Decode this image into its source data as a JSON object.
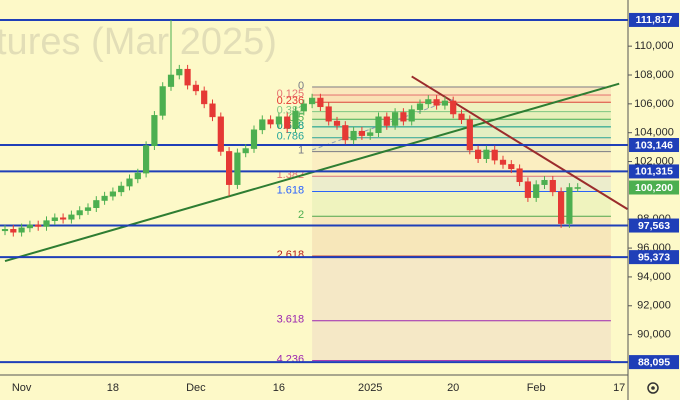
{
  "chart_data": {
    "type": "candlestick",
    "watermark": "tures (Mar 2025)",
    "categories": [
      null,
      null,
      "Nov",
      null,
      null,
      null,
      null,
      null,
      null,
      null,
      null,
      null,
      null,
      "18",
      null,
      null,
      null,
      null,
      null,
      null,
      null,
      null,
      null,
      "Dec",
      null,
      null,
      null,
      null,
      null,
      null,
      null,
      null,
      null,
      "16",
      null,
      null,
      null,
      null,
      null,
      null,
      null,
      null,
      null,
      null,
      "2025",
      null,
      null,
      null,
      null,
      null,
      null,
      null,
      null,
      null,
      "20",
      null,
      null,
      null,
      null,
      null,
      null,
      null,
      null,
      null,
      "Feb",
      null,
      null,
      null,
      null,
      null,
      null,
      null,
      null,
      null,
      "17"
    ],
    "open": [
      97200,
      97300,
      97100,
      97400,
      97600,
      97500,
      97900,
      98100,
      98000,
      98300,
      98600,
      98800,
      99300,
      99600,
      99900,
      100300,
      100800,
      101200,
      103100,
      105200,
      107200,
      108000,
      108400,
      107300,
      106900,
      106000,
      105100,
      102700,
      100400,
      102600,
      102900,
      104200,
      104900,
      104600,
      105100,
      104300,
      105500,
      106000,
      106400,
      105800,
      104800,
      104500,
      103500,
      104100,
      103800,
      104000,
      105100,
      104500,
      105400,
      104800,
      105600,
      106000,
      106300,
      105900,
      106200,
      105300,
      104900,
      102800,
      102200,
      102800,
      102100,
      101800,
      101500,
      100600,
      99500,
      100400,
      100700,
      99900,
      97700,
      100200,
      null,
      null,
      null,
      null,
      null
    ],
    "high": [
      97600,
      97600,
      97700,
      97900,
      97900,
      98200,
      98400,
      98400,
      98600,
      98900,
      99100,
      99600,
      99900,
      100200,
      100600,
      101100,
      101500,
      103400,
      105500,
      107500,
      111817,
      108700,
      108700,
      107600,
      107200,
      106300,
      105400,
      103000,
      102900,
      103200,
      104500,
      105200,
      105200,
      105400,
      105400,
      105800,
      106300,
      106700,
      106700,
      106100,
      105100,
      104800,
      104400,
      104400,
      104300,
      105400,
      105400,
      105700,
      105700,
      105900,
      106300,
      106600,
      106600,
      106500,
      106500,
      105600,
      105200,
      103100,
      103100,
      103100,
      102400,
      102100,
      101800,
      100900,
      100700,
      101000,
      101000,
      100200,
      100500,
      100500,
      null,
      null,
      null,
      null,
      null
    ],
    "low": [
      96900,
      96800,
      96800,
      97100,
      97200,
      97200,
      97600,
      97700,
      97700,
      98000,
      98300,
      98500,
      99000,
      99300,
      99600,
      100000,
      100500,
      100900,
      102800,
      104900,
      106900,
      107700,
      107000,
      106600,
      105700,
      104800,
      102400,
      99600,
      100100,
      102300,
      102600,
      103900,
      104300,
      104300,
      104000,
      104000,
      105200,
      105700,
      105500,
      104500,
      104200,
      103200,
      103200,
      103500,
      103500,
      103700,
      104200,
      104200,
      104500,
      104500,
      105300,
      105700,
      105600,
      105600,
      105000,
      104600,
      102500,
      101900,
      101900,
      101800,
      101500,
      101200,
      100300,
      99200,
      99200,
      100100,
      99600,
      97400,
      97400,
      99900,
      null,
      null,
      null,
      null,
      null
    ],
    "close": [
      97300,
      97100,
      97400,
      97600,
      97500,
      97900,
      98100,
      98000,
      98300,
      98600,
      98800,
      99300,
      99600,
      99900,
      100300,
      100800,
      101200,
      103100,
      105200,
      107200,
      108000,
      108400,
      107300,
      106900,
      106000,
      105100,
      102700,
      100400,
      102600,
      102900,
      104200,
      104900,
      104600,
      105100,
      104300,
      105500,
      106000,
      106400,
      105800,
      104800,
      104500,
      103500,
      104100,
      103800,
      104000,
      105100,
      104500,
      105400,
      104800,
      105600,
      106000,
      106300,
      105900,
      106200,
      105300,
      104900,
      102800,
      102200,
      102800,
      102100,
      101800,
      101500,
      100600,
      99500,
      100400,
      100700,
      99900,
      97700,
      100200,
      100200,
      null,
      null,
      null,
      null,
      null
    ],
    "up_color": "#4caf50",
    "down_color": "#e53935",
    "ylim": [
      87200,
      113200
    ],
    "yticks": [
      {
        "value": 90000,
        "label": "90,000"
      },
      {
        "value": 92000,
        "label": "92,000"
      },
      {
        "value": 94000,
        "label": "94,000"
      },
      {
        "value": 96000,
        "label": "96,000"
      },
      {
        "value": 98000,
        "label": "98,000"
      },
      {
        "value": 102000,
        "label": "102,000"
      },
      {
        "value": 104000,
        "label": "104,000"
      },
      {
        "value": 106000,
        "label": "106,000"
      },
      {
        "value": 108000,
        "label": "108,000"
      },
      {
        "value": 110000,
        "label": "110,000"
      }
    ],
    "grid": false,
    "levels": [
      {
        "value": 111817,
        "label": "111,817"
      },
      {
        "value": 103146,
        "label": "103,146"
      },
      {
        "value": 101315,
        "label": "101,315"
      },
      {
        "value": 97563,
        "label": "97,563"
      },
      {
        "value": 95373,
        "label": "95,373"
      },
      {
        "value": 88095,
        "label": "88,095"
      }
    ],
    "level_color": "#1f3fb8",
    "last_price": {
      "value": 100200,
      "label": "100,200",
      "color": "#4caf50"
    },
    "trendlines": [
      {
        "color": "#2e7d32",
        "dashed": false,
        "x": [
          0,
          74
        ],
        "y": [
          95100,
          107400
        ]
      },
      {
        "color": "#9b2c2c",
        "dashed": false,
        "x": [
          49,
          75
        ],
        "y": [
          107900,
          98700
        ]
      },
      {
        "color": "#8a9bb0",
        "dashed": true,
        "x": [
          37,
          54
        ],
        "y": [
          102800,
          106300
        ]
      }
    ],
    "fib": {
      "x": [
        37,
        73
      ],
      "start": 107170,
      "end": 102690,
      "levels": [
        {
          "ratio": 0,
          "color": "#787b86"
        },
        {
          "ratio": 0.125,
          "color": "#e57373"
        },
        {
          "ratio": 0.236,
          "color": "#e53935"
        },
        {
          "ratio": 0.382,
          "color": "#81c784"
        },
        {
          "ratio": 0.5,
          "color": "#4caf50"
        },
        {
          "ratio": 0.618,
          "color": "#009688"
        },
        {
          "ratio": 0.786,
          "color": "#26a69a"
        },
        {
          "ratio": 1,
          "color": "#787b86"
        },
        {
          "ratio": 1.382,
          "color": "#e57373"
        },
        {
          "ratio": 1.618,
          "color": "#2962ff"
        },
        {
          "ratio": 2,
          "color": "#4caf50"
        },
        {
          "ratio": 2.618,
          "color": "#b71c1c"
        },
        {
          "ratio": 3.618,
          "color": "#9c27b0"
        },
        {
          "ratio": 4.236,
          "color": "#9c27b0"
        }
      ]
    }
  }
}
